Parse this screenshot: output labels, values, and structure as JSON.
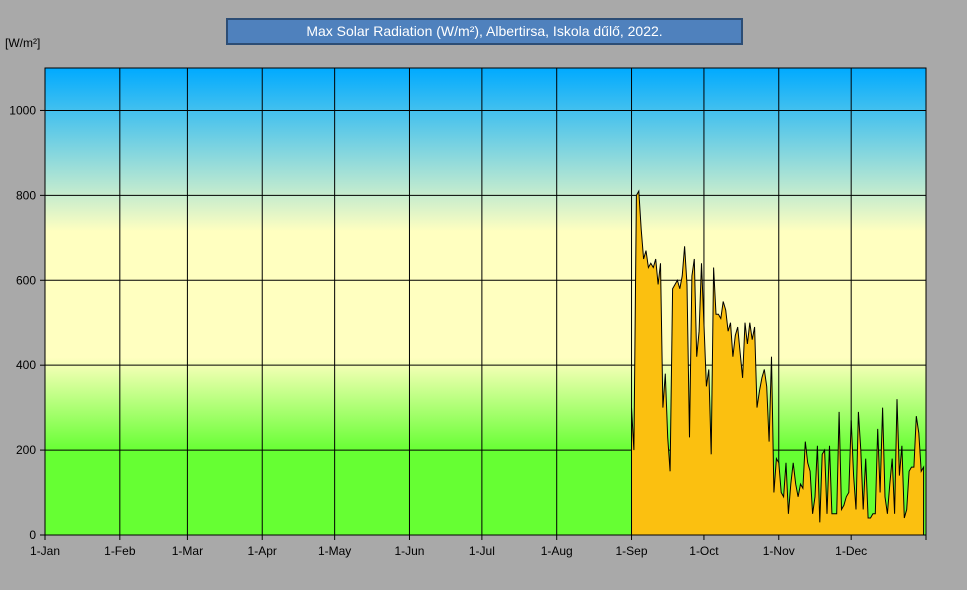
{
  "title": "Max Solar Radiation  (W/m²), Albertirsa, Iskola dűlő, 2022.",
  "unit_label": "[W/m²]",
  "colors": {
    "background": "#a9a9a9",
    "title_box": "#4f81bd",
    "area_fill": "#fbc010",
    "area_line": "#000000",
    "gradient": [
      "#00aaff",
      "#ffffc0",
      "#ffffc0",
      "#66ff33"
    ]
  },
  "chart_data": {
    "type": "area",
    "title": "Max Solar Radiation  (W/m²), Albertirsa, Iskola dűlő, 2022.",
    "ylabel": "[W/m²]",
    "xlabel": "",
    "ylim": [
      0,
      1100
    ],
    "xlim_days": [
      0,
      365
    ],
    "yticks": [
      0,
      200,
      400,
      600,
      800,
      1000
    ],
    "xticks": [
      {
        "label": "1-Jan",
        "day": 0
      },
      {
        "label": "1-Feb",
        "day": 31
      },
      {
        "label": "1-Mar",
        "day": 59
      },
      {
        "label": "1-Apr",
        "day": 90
      },
      {
        "label": "1-May",
        "day": 120
      },
      {
        "label": "1-Jun",
        "day": 151
      },
      {
        "label": "1-Jul",
        "day": 181
      },
      {
        "label": "1-Aug",
        "day": 212
      },
      {
        "label": "1-Sep",
        "day": 243
      },
      {
        "label": "1-Oct",
        "day": 273
      },
      {
        "label": "1-Nov",
        "day": 304
      },
      {
        "label": "1-Dec",
        "day": 334
      }
    ],
    "grid": true,
    "series": [
      {
        "start_date": "2022-09-01",
        "values": [
          300,
          200,
          800,
          810,
          720,
          650,
          670,
          630,
          640,
          630,
          650,
          590,
          640,
          300,
          380,
          230,
          150,
          580,
          590,
          600,
          580,
          610,
          680,
          590,
          230,
          610,
          650,
          420,
          480,
          640,
          500,
          350,
          390,
          190,
          630,
          520,
          520,
          510,
          550,
          530,
          480,
          500,
          420,
          470,
          490,
          430,
          370,
          500,
          450,
          500,
          460,
          490,
          300,
          340,
          370,
          390,
          350,
          220,
          420,
          100,
          180,
          170,
          100,
          90,
          170,
          50,
          120,
          170,
          120,
          90,
          120,
          110,
          220,
          170,
          150,
          50,
          90,
          210,
          30,
          190,
          200,
          50,
          210,
          50,
          50,
          50,
          290,
          60,
          70,
          90,
          100,
          270,
          140,
          60,
          290,
          200,
          60,
          180,
          40,
          40,
          50,
          50,
          250,
          100,
          300,
          90,
          50,
          120,
          180,
          50,
          320,
          140,
          210,
          40,
          60,
          150,
          160,
          160,
          280,
          240,
          150,
          160
        ]
      }
    ]
  }
}
